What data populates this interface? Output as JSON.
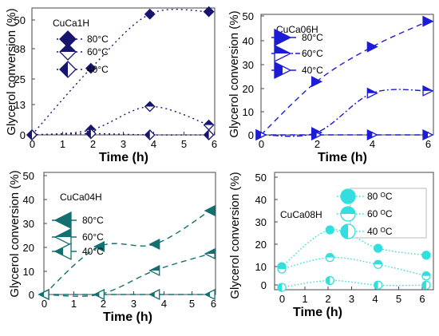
{
  "chart_data": [
    {
      "type": "scatter",
      "title": "CuCa1H",
      "xlabel": "Time (h)",
      "ylabel": "Glycerol conversion (%)",
      "xlim": [
        0,
        6.2
      ],
      "ylim": [
        0,
        51.5
      ],
      "xticks": [
        "0",
        "1",
        "2",
        "3",
        "4",
        "5",
        "6"
      ],
      "yticks": [
        "0",
        "13",
        "25",
        "38",
        "50"
      ],
      "ytick_values": [
        0,
        12.5,
        25,
        37.5,
        50
      ],
      "color": "#16166e",
      "marker": "diamond",
      "legend": "top-left",
      "series": [
        {
          "name": "80°C",
          "fill": "full",
          "dash": "2,4",
          "x": [
            0,
            2,
            4,
            6
          ],
          "y": [
            0,
            27,
            49,
            50
          ]
        },
        {
          "name": "60°C",
          "fill": "half",
          "dash": "2,4",
          "x": [
            0,
            2,
            4,
            6
          ],
          "y": [
            0,
            2,
            11.5,
            4
          ]
        },
        {
          "name": "40°C",
          "fill": "halfv",
          "dash": "2,4",
          "x": [
            0,
            2,
            4,
            6
          ],
          "y": [
            0,
            0.5,
            0,
            0
          ]
        }
      ]
    },
    {
      "type": "scatter",
      "title": "CuCa06H",
      "xlabel": "Time (h)",
      "ylabel": "Glycerol conversion (%)",
      "xlim": [
        0,
        6.2
      ],
      "ylim": [
        0,
        52
      ],
      "xticks": [
        "0",
        "2",
        "4",
        "6"
      ],
      "yticks": [
        "0",
        "10",
        "20",
        "30",
        "40",
        "50"
      ],
      "ytick_values": [
        0,
        10,
        20,
        30,
        40,
        50
      ],
      "color": "#1c1cd6",
      "marker": "triangle-right",
      "legend": "top-left",
      "series": [
        {
          "name": "80°C",
          "fill": "full",
          "dash": "7,5",
          "x": [
            0,
            2,
            4,
            6
          ],
          "y": [
            0,
            23,
            38,
            49
          ]
        },
        {
          "name": "60°C",
          "fill": "half",
          "dash": "7,3,2,3",
          "x": [
            0,
            2,
            4,
            6
          ],
          "y": [
            0,
            1,
            18,
            19
          ]
        },
        {
          "name": "40°C",
          "fill": "halfv",
          "dash": "7,5",
          "x": [
            0,
            2,
            4,
            6
          ],
          "y": [
            0,
            0,
            0,
            0
          ]
        }
      ]
    },
    {
      "type": "scatter",
      "title": "CuCa04H",
      "xlabel": "Time (h)",
      "ylabel": "Glycerol conversion (%)",
      "xlim": [
        0,
        6.2
      ],
      "ylim": [
        0,
        51
      ],
      "xticks": [
        "0",
        "1",
        "2",
        "3",
        "4",
        "5",
        "6"
      ],
      "yticks": [
        "0",
        "10",
        "20",
        "30",
        "40",
        "50"
      ],
      "ytick_values": [
        0,
        10,
        20,
        30,
        40,
        50
      ],
      "color": "#137070",
      "marker": "triangle-left",
      "legend": "top-left",
      "series": [
        {
          "name": "80°C",
          "fill": "full",
          "dash": "7,5",
          "x": [
            0,
            2,
            4,
            6
          ],
          "y": [
            0,
            20,
            21,
            35
          ]
        },
        {
          "name": "60°C",
          "fill": "half",
          "dash": "7,5",
          "x": [
            0,
            2,
            4,
            6
          ],
          "y": [
            0,
            0,
            10,
            17
          ]
        },
        {
          "name": "40°C",
          "fill": "halfv",
          "dash": "7,5",
          "x": [
            0,
            2,
            4,
            6
          ],
          "y": [
            0,
            0,
            0,
            0
          ]
        }
      ]
    },
    {
      "type": "scatter",
      "title": "CuCa08H",
      "xlabel": "Time (h)",
      "ylabel": "Glycerol conversion (%)",
      "xlim": [
        -0.3,
        6.3
      ],
      "ylim": [
        -1,
        50
      ],
      "xticks": [
        "0",
        "1",
        "2",
        "3",
        "4",
        "5",
        "6"
      ],
      "yticks": [
        "0",
        "10",
        "20",
        "30",
        "40",
        "50"
      ],
      "ytick_values": [
        0,
        10,
        20,
        30,
        40,
        50
      ],
      "color": "#33dede",
      "marker": "circle",
      "legend": "top-right",
      "series": [
        {
          "name": "80 ᴼC",
          "fill": "full",
          "dash": "1.5,2.5",
          "x": [
            0,
            2,
            4,
            6
          ],
          "y": [
            9,
            25,
            17,
            14
          ]
        },
        {
          "name": "60 ᴼC",
          "fill": "half",
          "dash": "1.5,2.5",
          "x": [
            0,
            2,
            4,
            6
          ],
          "y": [
            8,
            13,
            10,
            5
          ]
        },
        {
          "name": "40 ᴼC",
          "fill": "halfv",
          "dash": "1.5,2.5",
          "x": [
            0,
            2,
            4,
            6
          ],
          "y": [
            0,
            3,
            1,
            1
          ]
        }
      ]
    }
  ]
}
